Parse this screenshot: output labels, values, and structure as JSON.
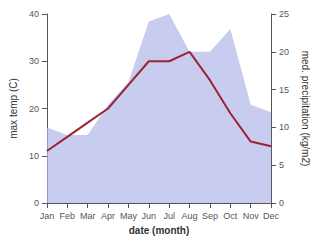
{
  "chart_data": {
    "type": "line",
    "xlabel": "date (month)",
    "ylabel": "max temp (C)",
    "y2label": "med. precipitation (kg/m2)",
    "categories": [
      "Jan",
      "Feb",
      "Mar",
      "Apr",
      "May",
      "Jun",
      "Jul",
      "Aug",
      "Sep",
      "Oct",
      "Nov",
      "Dec"
    ],
    "series": [
      {
        "type": "area",
        "axis": "y2",
        "color": "#b0b8e8",
        "values": [
          10,
          9,
          9,
          13,
          16,
          24,
          25,
          20,
          20,
          23,
          13,
          12
        ]
      },
      {
        "type": "line",
        "color": "#9b2335",
        "values": [
          11,
          14,
          17,
          20,
          25,
          30,
          30,
          32,
          26,
          19,
          13,
          12
        ]
      }
    ],
    "ylim": [
      0,
      40
    ],
    "yticks": [
      0,
      10,
      20,
      30,
      40
    ],
    "y2lim": [
      0,
      25
    ],
    "y2ticks": [
      0,
      5,
      10,
      15,
      20,
      25
    ],
    "grid": false
  }
}
